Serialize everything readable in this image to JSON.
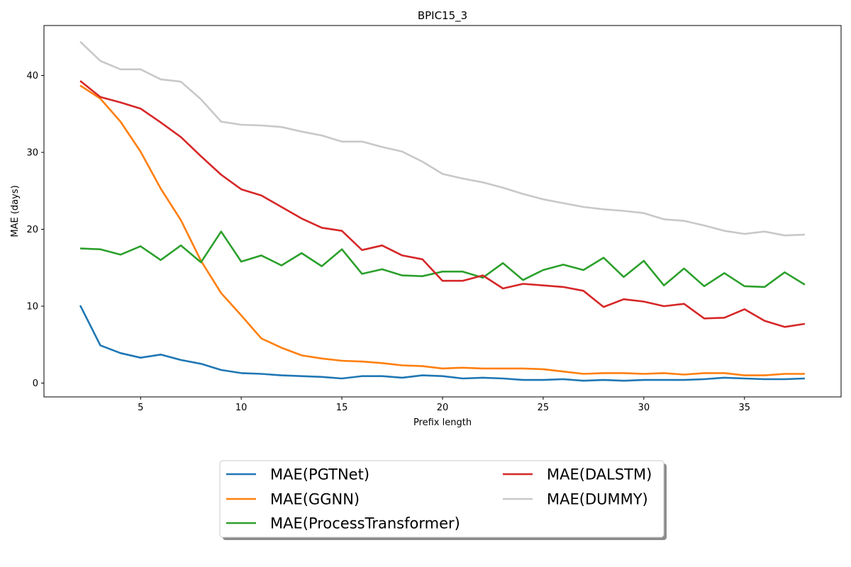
{
  "chart_data": {
    "type": "line",
    "title": "BPIC15_3",
    "xlabel": "Prefix length",
    "ylabel": "MAE (days)",
    "xlim": [
      0.2,
      39.8
    ],
    "ylim": [
      -1.8,
      46.5
    ],
    "xticks": [
      5,
      10,
      15,
      20,
      25,
      30,
      35
    ],
    "yticks": [
      0,
      10,
      20,
      30,
      40
    ],
    "grid": false,
    "legend_position": "bottom-center",
    "x": [
      2,
      3,
      4,
      5,
      6,
      7,
      8,
      9,
      10,
      11,
      12,
      13,
      14,
      15,
      16,
      17,
      18,
      19,
      20,
      21,
      22,
      23,
      24,
      25,
      26,
      27,
      28,
      29,
      30,
      31,
      32,
      33,
      34,
      35,
      36,
      37,
      38
    ],
    "series": [
      {
        "name": "MAE(PGTNet)",
        "color": "#1f77b4",
        "values": [
          10.1,
          4.9,
          3.9,
          3.3,
          3.7,
          3.0,
          2.5,
          1.7,
          1.3,
          1.2,
          1.0,
          0.9,
          0.8,
          0.6,
          0.9,
          0.9,
          0.7,
          1.0,
          0.9,
          0.6,
          0.7,
          0.6,
          0.4,
          0.4,
          0.5,
          0.3,
          0.4,
          0.3,
          0.4,
          0.4,
          0.4,
          0.5,
          0.7,
          0.6,
          0.5,
          0.5,
          0.6
        ]
      },
      {
        "name": "MAE(GGNN)",
        "color": "#ff7f0e",
        "values": [
          38.7,
          37.0,
          34.0,
          30.1,
          25.3,
          21.2,
          15.9,
          11.7,
          8.8,
          5.8,
          4.6,
          3.6,
          3.2,
          2.9,
          2.8,
          2.6,
          2.3,
          2.2,
          1.9,
          2.0,
          1.9,
          1.9,
          1.9,
          1.8,
          1.5,
          1.2,
          1.3,
          1.3,
          1.2,
          1.3,
          1.1,
          1.3,
          1.3,
          1.0,
          1.0,
          1.2,
          1.2
        ]
      },
      {
        "name": "MAE(ProcessTransformer)",
        "color": "#2ca02c",
        "values": [
          17.5,
          17.4,
          16.7,
          17.8,
          16.0,
          17.9,
          15.7,
          19.7,
          15.8,
          16.6,
          15.3,
          16.9,
          15.2,
          17.4,
          14.2,
          14.8,
          14.0,
          13.9,
          14.5,
          14.5,
          13.7,
          15.6,
          13.4,
          14.7,
          15.4,
          14.7,
          16.3,
          13.8,
          15.9,
          12.7,
          14.9,
          12.6,
          14.3,
          12.6,
          12.5,
          14.4,
          12.8
        ]
      },
      {
        "name": "MAE(DALSTM)",
        "color": "#d62728",
        "values": [
          39.3,
          37.2,
          36.5,
          35.7,
          33.9,
          32.0,
          29.5,
          27.1,
          25.2,
          24.4,
          22.9,
          21.4,
          20.2,
          19.8,
          17.3,
          17.9,
          16.6,
          16.1,
          13.3,
          13.3,
          14.0,
          12.3,
          12.9,
          12.7,
          12.5,
          12.0,
          9.9,
          10.9,
          10.6,
          10.0,
          10.3,
          8.4,
          8.5,
          9.6,
          8.1,
          7.3,
          7.7
        ]
      },
      {
        "name": "MAE(DUMMY)",
        "color": "#c8c8c8",
        "values": [
          44.4,
          41.9,
          40.8,
          40.8,
          39.5,
          39.2,
          36.9,
          34.0,
          33.6,
          33.5,
          33.3,
          32.7,
          32.2,
          31.4,
          31.4,
          30.7,
          30.1,
          28.8,
          27.2,
          26.6,
          26.1,
          25.4,
          24.6,
          23.9,
          23.4,
          22.9,
          22.6,
          22.4,
          22.1,
          21.3,
          21.1,
          20.5,
          19.8,
          19.4,
          19.7,
          19.2,
          19.3
        ]
      }
    ]
  }
}
